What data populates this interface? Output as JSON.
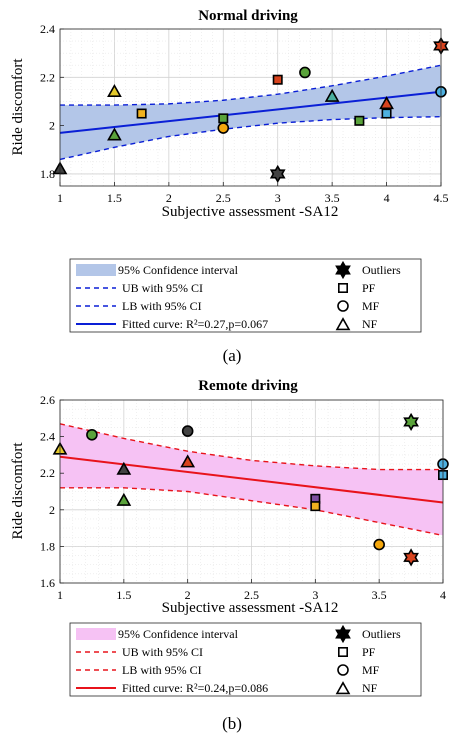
{
  "chart_data": [
    {
      "type": "scatter",
      "title": "Normal driving",
      "xlabel": "Subjective assessment -SA12",
      "ylabel": "Ride discomfort",
      "xlim": [
        1,
        4.5
      ],
      "ylim": [
        1.75,
        2.4
      ],
      "xticks": [
        "1",
        "1.5",
        "2",
        "2.5",
        "3",
        "3.5",
        "4",
        "4.5"
      ],
      "yticks": [
        "1.8",
        "2",
        "2.2",
        "2.4"
      ],
      "grid": true,
      "fit": {
        "x": [
          1,
          4.5
        ],
        "y": [
          1.97,
          2.14
        ]
      },
      "ci_upper": {
        "x": [
          1,
          1.5,
          2,
          2.5,
          3,
          3.5,
          4,
          4.5
        ],
        "y": [
          2.085,
          2.085,
          2.09,
          2.105,
          2.13,
          2.165,
          2.205,
          2.25
        ]
      },
      "ci_lower": {
        "x": [
          1,
          1.5,
          2,
          2.5,
          3,
          3.5,
          4,
          4.5
        ],
        "y": [
          1.86,
          1.91,
          1.955,
          1.985,
          2.01,
          2.025,
          2.033,
          2.037
        ]
      },
      "points": [
        {
          "x": 1,
          "y": 1.82,
          "shape": "triangle",
          "color": "#424242"
        },
        {
          "x": 1.5,
          "y": 2.14,
          "shape": "triangle",
          "color": "#e3c92b"
        },
        {
          "x": 1.5,
          "y": 1.96,
          "shape": "triangle",
          "color": "#5aa33b"
        },
        {
          "x": 1.75,
          "y": 2.05,
          "shape": "square",
          "color": "#f0b21f"
        },
        {
          "x": 2.5,
          "y": 2.03,
          "shape": "square",
          "color": "#5aa33b"
        },
        {
          "x": 2.5,
          "y": 1.99,
          "shape": "circle",
          "color": "#f5a70c"
        },
        {
          "x": 3,
          "y": 2.19,
          "shape": "square",
          "color": "#d8431e"
        },
        {
          "x": 3,
          "y": 1.8,
          "shape": "hexagram",
          "color": "#424242"
        },
        {
          "x": 3.25,
          "y": 2.22,
          "shape": "circle",
          "color": "#5aa33b"
        },
        {
          "x": 3.5,
          "y": 2.12,
          "shape": "triangle",
          "color": "#4aae9e"
        },
        {
          "x": 3.75,
          "y": 2.02,
          "shape": "square",
          "color": "#5aa33b"
        },
        {
          "x": 4,
          "y": 2.05,
          "shape": "square",
          "color": "#4db0e0"
        },
        {
          "x": 4,
          "y": 2.09,
          "shape": "triangle",
          "color": "#d8431e"
        },
        {
          "x": 4.5,
          "y": 2.14,
          "shape": "circle",
          "color": "#4db0e0"
        },
        {
          "x": 4.5,
          "y": 2.33,
          "shape": "hexagram",
          "color": "#d8431e"
        }
      ],
      "colors": {
        "fit": "#0a1fd6",
        "band": "#b3c6e8",
        "bound": "#0a1fd6"
      }
    },
    {
      "type": "scatter",
      "title": "Remote driving",
      "xlabel": "Subjective assessment -SA12",
      "ylabel": "Ride discomfort",
      "xlim": [
        1,
        4
      ],
      "ylim": [
        1.6,
        2.6
      ],
      "xticks": [
        "1",
        "1.5",
        "2",
        "2.5",
        "3",
        "3.5",
        "4"
      ],
      "yticks": [
        "1.6",
        "1.8",
        "2",
        "2.2",
        "2.4",
        "2.6"
      ],
      "grid": true,
      "fit": {
        "x": [
          1,
          4
        ],
        "y": [
          2.29,
          2.04
        ]
      },
      "ci_upper": {
        "x": [
          1,
          1.5,
          2,
          2.5,
          3,
          3.5,
          4
        ],
        "y": [
          2.47,
          2.39,
          2.32,
          2.27,
          2.24,
          2.22,
          2.22
        ]
      },
      "ci_lower": {
        "x": [
          1,
          1.5,
          2,
          2.5,
          3,
          3.5,
          4
        ],
        "y": [
          2.12,
          2.12,
          2.1,
          2.05,
          2.0,
          1.93,
          1.86
        ]
      },
      "points": [
        {
          "x": 1,
          "y": 2.33,
          "shape": "triangle",
          "color": "#e3c92b"
        },
        {
          "x": 1.25,
          "y": 2.41,
          "shape": "circle",
          "color": "#5aa33b"
        },
        {
          "x": 1.5,
          "y": 2.22,
          "shape": "triangle",
          "color": "#424242"
        },
        {
          "x": 1.5,
          "y": 2.05,
          "shape": "triangle",
          "color": "#5aa33b"
        },
        {
          "x": 2,
          "y": 2.43,
          "shape": "circle",
          "color": "#424242"
        },
        {
          "x": 2,
          "y": 2.26,
          "shape": "triangle",
          "color": "#d8431e"
        },
        {
          "x": 3,
          "y": 2.06,
          "shape": "square",
          "color": "#7e4fa0"
        },
        {
          "x": 3,
          "y": 2.02,
          "shape": "square",
          "color": "#f0b21f"
        },
        {
          "x": 3.5,
          "y": 1.81,
          "shape": "circle",
          "color": "#f5a70c"
        },
        {
          "x": 3.75,
          "y": 2.48,
          "shape": "hexagram",
          "color": "#5aa33b"
        },
        {
          "x": 3.75,
          "y": 1.74,
          "shape": "hexagram",
          "color": "#d8431e"
        },
        {
          "x": 4,
          "y": 2.25,
          "shape": "circle",
          "color": "#4db0e0"
        },
        {
          "x": 4,
          "y": 2.19,
          "shape": "square",
          "color": "#4db0e0"
        }
      ],
      "colors": {
        "fit": "#e8131b",
        "band": "#f6c2f4",
        "bound": "#e8131b"
      }
    }
  ],
  "legends": [
    {
      "band_label": "95% Confidence interval",
      "ub_label": "UB with 95% CI",
      "lb_label": "LB with 95% CI",
      "fit_label": "Fitted curve: R²=0.27,p=0.067",
      "outliers_label": "Outliers",
      "pf_label": "PF",
      "mf_label": "MF",
      "nf_label": "NF",
      "caption": "(a)"
    },
    {
      "band_label": "95% Confidence interval",
      "ub_label": "UB with 95% CI",
      "lb_label": "LB with 95% CI",
      "fit_label": "Fitted curve: R²=0.24,p=0.086",
      "outliers_label": "Outliers",
      "pf_label": "PF",
      "mf_label": "MF",
      "nf_label": "NF",
      "caption": "(b)"
    }
  ]
}
